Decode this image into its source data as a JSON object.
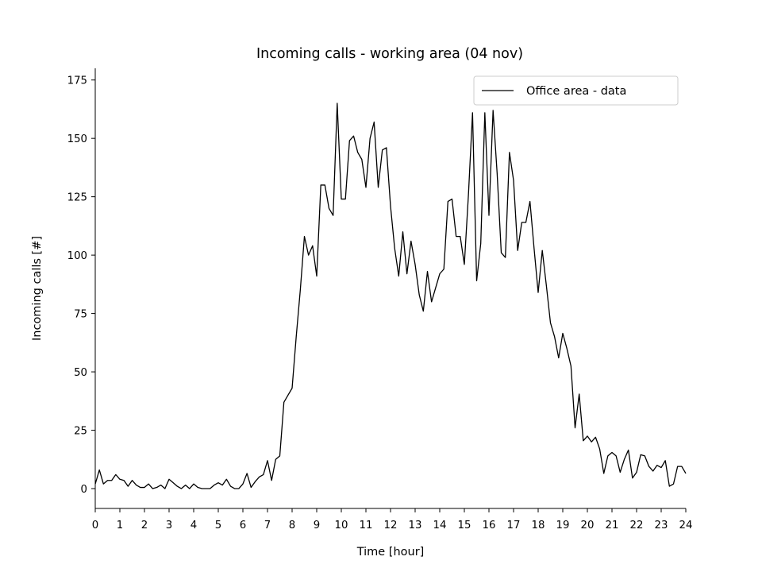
{
  "chart_data": {
    "type": "line",
    "title": "Incoming calls - working area (04 nov)",
    "xlabel": "Time [hour]",
    "ylabel": "Incoming calls [#]",
    "xlim": [
      0,
      24
    ],
    "ylim": [
      -8.5,
      180
    ],
    "xticks": [
      0,
      1,
      2,
      3,
      4,
      5,
      6,
      7,
      8,
      9,
      10,
      11,
      12,
      13,
      14,
      15,
      16,
      17,
      18,
      19,
      20,
      21,
      22,
      23,
      24
    ],
    "yticks": [
      0,
      25,
      50,
      75,
      100,
      125,
      150,
      175
    ],
    "grid": false,
    "legend_position": "upper right",
    "line_color": "#000000",
    "series": [
      {
        "name": "Office area - data",
        "x": [
          0.0,
          0.167,
          0.333,
          0.5,
          0.667,
          0.833,
          1.0,
          1.167,
          1.333,
          1.5,
          1.667,
          1.833,
          2.0,
          2.167,
          2.333,
          2.5,
          2.667,
          2.833,
          3.0,
          3.167,
          3.333,
          3.5,
          3.667,
          3.833,
          4.0,
          4.167,
          4.333,
          4.5,
          4.667,
          4.833,
          5.0,
          5.167,
          5.333,
          5.5,
          5.667,
          5.833,
          6.0,
          6.167,
          6.333,
          6.5,
          6.667,
          6.833,
          7.0,
          7.167,
          7.333,
          7.5,
          7.667,
          7.833,
          8.0,
          8.167,
          8.333,
          8.5,
          8.667,
          8.833,
          9.0,
          9.167,
          9.333,
          9.5,
          9.667,
          9.833,
          10.0,
          10.167,
          10.333,
          10.5,
          10.667,
          10.833,
          11.0,
          11.167,
          11.333,
          11.5,
          11.667,
          11.833,
          12.0,
          12.167,
          12.333,
          12.5,
          12.667,
          12.833,
          13.0,
          13.167,
          13.333,
          13.5,
          13.667,
          13.833,
          14.0,
          14.167,
          14.333,
          14.5,
          14.667,
          14.833,
          15.0,
          15.167,
          15.333,
          15.5,
          15.667,
          15.833,
          16.0,
          16.167,
          16.333,
          16.5,
          16.667,
          16.833,
          17.0,
          17.167,
          17.333,
          17.5,
          17.667,
          17.833,
          18.0,
          18.167,
          18.333,
          18.5,
          18.667,
          18.833,
          19.0,
          19.167,
          19.333,
          19.5,
          19.667,
          19.833,
          20.0,
          20.167,
          20.333,
          20.5,
          20.667,
          20.833,
          21.0,
          21.167,
          21.333,
          21.5,
          21.667,
          21.833,
          22.0,
          22.167,
          22.333,
          22.5,
          22.667,
          22.833,
          23.0,
          23.167,
          23.333,
          23.5,
          23.667,
          23.833,
          24.0
        ],
        "y": [
          2,
          8,
          2,
          3.5,
          3.5,
          6,
          4,
          3.5,
          1,
          3.5,
          1.5,
          0.5,
          0.5,
          2,
          0,
          0.5,
          1.5,
          0,
          4,
          2.5,
          1,
          0,
          1.5,
          0,
          2,
          0.5,
          0,
          0,
          0,
          1.5,
          2.5,
          1.5,
          4,
          1,
          0,
          0,
          2,
          6.5,
          0.5,
          3,
          5,
          6,
          12,
          3.5,
          12.5,
          14,
          37,
          40,
          43,
          65,
          85,
          108,
          100,
          104,
          91,
          130,
          130,
          120,
          117,
          165,
          124,
          124,
          149,
          151,
          144,
          141,
          129,
          150,
          157,
          129,
          145,
          146,
          121,
          103,
          91,
          110,
          92,
          106,
          96,
          83,
          76,
          93,
          80,
          86,
          92,
          94,
          123,
          124,
          108,
          108,
          96,
          126,
          161,
          89,
          105,
          161,
          117,
          162,
          135,
          101,
          99,
          144,
          132,
          102,
          114,
          114,
          123,
          103,
          84,
          102,
          87,
          71,
          65,
          56,
          66.5,
          60,
          52.5,
          26,
          40.5,
          20.5,
          22.5,
          20,
          22,
          17,
          6.5,
          14,
          15.5,
          14,
          7,
          12.5,
          16.5,
          4.5,
          7,
          14.5,
          14,
          9.5,
          7.5,
          10,
          9,
          12,
          1,
          2,
          9.5,
          9.5,
          6.5
        ]
      }
    ]
  }
}
